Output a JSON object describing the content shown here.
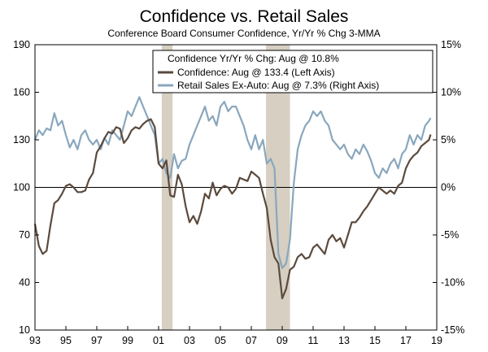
{
  "chart_data": {
    "type": "line",
    "title": "Confidence vs. Retail Sales",
    "subtitle": "Conference Board Consumer Confidence, Yr/Yr % Chg 3-MMA",
    "xlabel": "",
    "ylabel_left": "",
    "ylabel_right": "",
    "x_ticks": [
      "93",
      "95",
      "97",
      "99",
      "01",
      "03",
      "05",
      "07",
      "09",
      "11",
      "13",
      "15",
      "17",
      "19"
    ],
    "x_range": [
      1993,
      2019
    ],
    "y_left_ticks": [
      "190",
      "160",
      "130",
      "100",
      "70",
      "40",
      "10"
    ],
    "y_left_range": [
      10,
      190
    ],
    "y_right_ticks": [
      "15%",
      "10%",
      "5%",
      "0%",
      "-5%",
      "-10%",
      "-15%"
    ],
    "y_right_range": [
      -15,
      15
    ],
    "grid": false,
    "zero_line": true,
    "legend_position": "top-right",
    "legend": {
      "header": "Confidence Yr/Yr % Chg: Aug @ 10.8%",
      "entries": [
        "Confidence: Aug @ 133.4 (Left Axis)",
        "Retail Sales Ex-Auto: Aug @ 7.3% (Right Axis)"
      ]
    },
    "recessions": [
      [
        2001.2,
        2001.9
      ],
      [
        2007.95,
        2009.5
      ]
    ],
    "series": [
      {
        "name": "Confidence: Aug @ 133.4 (Left Axis)",
        "axis": "left",
        "color": "#5b4a3d",
        "x": [
          1993.0,
          1993.25,
          1993.5,
          1993.75,
          1994.0,
          1994.25,
          1994.5,
          1994.75,
          1995.0,
          1995.25,
          1995.5,
          1995.75,
          1996.0,
          1996.25,
          1996.5,
          1996.75,
          1997.0,
          1997.25,
          1997.5,
          1997.75,
          1998.0,
          1998.25,
          1998.5,
          1998.75,
          1999.0,
          1999.25,
          1999.5,
          1999.75,
          2000.0,
          2000.25,
          2000.5,
          2000.75,
          2001.0,
          2001.25,
          2001.5,
          2001.75,
          2002.0,
          2002.25,
          2002.5,
          2002.75,
          2003.0,
          2003.25,
          2003.5,
          2003.75,
          2004.0,
          2004.25,
          2004.5,
          2004.75,
          2005.0,
          2005.25,
          2005.5,
          2005.75,
          2006.0,
          2006.25,
          2006.5,
          2006.75,
          2007.0,
          2007.25,
          2007.5,
          2007.75,
          2008.0,
          2008.25,
          2008.5,
          2008.75,
          2009.0,
          2009.25,
          2009.5,
          2009.75,
          2010.0,
          2010.25,
          2010.5,
          2010.75,
          2011.0,
          2011.25,
          2011.5,
          2011.75,
          2012.0,
          2012.25,
          2012.5,
          2012.75,
          2013.0,
          2013.25,
          2013.5,
          2013.75,
          2014.0,
          2014.25,
          2014.5,
          2014.75,
          2015.0,
          2015.25,
          2015.5,
          2015.75,
          2016.0,
          2016.25,
          2016.5,
          2016.75,
          2017.0,
          2017.25,
          2017.5,
          2017.75,
          2018.0,
          2018.25,
          2018.5,
          2018.6
        ],
        "values": [
          77,
          63,
          58,
          60,
          76,
          90,
          92,
          96,
          101,
          102,
          100,
          97,
          97,
          98,
          105,
          109,
          122,
          126,
          131,
          135,
          134,
          138,
          137,
          128,
          131,
          136,
          138,
          137,
          140,
          142,
          143,
          138,
          115,
          112,
          117,
          95,
          94,
          108,
          102,
          88,
          78,
          82,
          77,
          85,
          96,
          93,
          103,
          95,
          99,
          101,
          100,
          96,
          99,
          106,
          105,
          104,
          110,
          108,
          106,
          96,
          87,
          67,
          56,
          52,
          30,
          36,
          48,
          50,
          56,
          58,
          55,
          56,
          62,
          64,
          61,
          58,
          67,
          70,
          66,
          68,
          62,
          70,
          78,
          78,
          81,
          85,
          88,
          92,
          96,
          100,
          98,
          96,
          98,
          96,
          101,
          103,
          112,
          117,
          120,
          122,
          126,
          128,
          130,
          133.4
        ]
      },
      {
        "name": "Retail Sales Ex-Auto: Aug @ 7.3% (Right Axis)",
        "axis": "right",
        "color": "#89a7bd",
        "x": [
          1993.0,
          1993.25,
          1993.5,
          1993.75,
          1994.0,
          1994.25,
          1994.5,
          1994.75,
          1995.0,
          1995.25,
          1995.5,
          1995.75,
          1996.0,
          1996.25,
          1996.5,
          1996.75,
          1997.0,
          1997.25,
          1997.5,
          1997.75,
          1998.0,
          1998.25,
          1998.5,
          1998.75,
          1999.0,
          1999.25,
          1999.5,
          1999.75,
          2000.0,
          2000.25,
          2000.5,
          2000.75,
          2001.0,
          2001.25,
          2001.5,
          2001.75,
          2002.0,
          2002.25,
          2002.5,
          2002.75,
          2003.0,
          2003.25,
          2003.5,
          2003.75,
          2004.0,
          2004.25,
          2004.5,
          2004.75,
          2005.0,
          2005.25,
          2005.5,
          2005.75,
          2006.0,
          2006.25,
          2006.5,
          2006.75,
          2007.0,
          2007.25,
          2007.5,
          2007.75,
          2008.0,
          2008.25,
          2008.5,
          2008.75,
          2009.0,
          2009.25,
          2009.5,
          2009.75,
          2010.0,
          2010.25,
          2010.5,
          2010.75,
          2011.0,
          2011.25,
          2011.5,
          2011.75,
          2012.0,
          2012.25,
          2012.5,
          2012.75,
          2013.0,
          2013.25,
          2013.5,
          2013.75,
          2014.0,
          2014.25,
          2014.5,
          2014.75,
          2015.0,
          2015.25,
          2015.5,
          2015.75,
          2016.0,
          2016.25,
          2016.5,
          2016.75,
          2017.0,
          2017.25,
          2017.5,
          2017.75,
          2018.0,
          2018.25,
          2018.5,
          2018.6
        ],
        "values": [
          5.0,
          6.0,
          5.5,
          6.2,
          6.0,
          7.8,
          6.5,
          7.0,
          5.5,
          4.2,
          5.0,
          4.0,
          5.5,
          6.0,
          5.0,
          4.5,
          5.0,
          4.0,
          5.2,
          4.5,
          6.0,
          5.5,
          5.0,
          6.5,
          8.0,
          7.5,
          8.5,
          9.5,
          8.5,
          7.5,
          6.5,
          5.5,
          2.5,
          3.0,
          1.5,
          1.0,
          3.5,
          2.0,
          2.8,
          3.0,
          4.5,
          5.5,
          6.5,
          7.5,
          8.5,
          7.0,
          7.5,
          6.5,
          8.5,
          9.0,
          8.0,
          8.5,
          8.5,
          7.5,
          6.5,
          5.0,
          4.0,
          5.5,
          4.0,
          5.0,
          2.5,
          3.0,
          2.0,
          -7.0,
          -8.5,
          -8.0,
          -5.5,
          0.5,
          4.0,
          5.5,
          6.5,
          7.0,
          8.0,
          7.5,
          8.0,
          7.0,
          6.5,
          5.0,
          4.5,
          4.0,
          4.5,
          3.5,
          3.0,
          4.0,
          3.5,
          4.5,
          3.8,
          2.8,
          1.5,
          1.0,
          2.0,
          1.5,
          2.5,
          3.0,
          2.0,
          3.5,
          4.0,
          5.5,
          4.5,
          5.5,
          5.0,
          6.5,
          7.0,
          7.3
        ]
      }
    ]
  }
}
